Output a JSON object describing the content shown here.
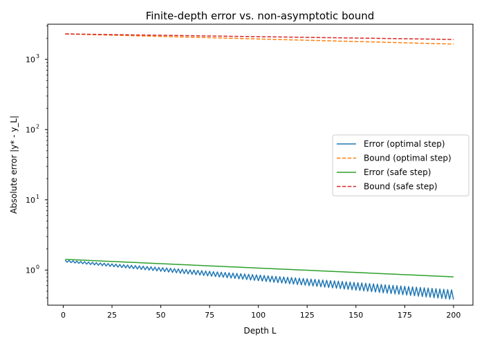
{
  "chart_data": {
    "type": "line",
    "title": "Finite-depth error vs. non-asymptotic bound",
    "xlabel": "Depth L",
    "ylabel": "Absolute error |y* - y_L|",
    "xlim": [
      -7.95,
      209.95
    ],
    "ylim_log10": [
      -0.5,
      3.5
    ],
    "yscale": "log",
    "x_ticks": [
      0,
      25,
      50,
      75,
      100,
      125,
      150,
      175,
      200
    ],
    "x_tick_labels": [
      "0",
      "25",
      "50",
      "75",
      "100",
      "125",
      "150",
      "175",
      "200"
    ],
    "y_ticks": [
      1,
      10,
      100,
      1000
    ],
    "y_tick_labels": [
      "10",
      "10",
      "10",
      "10"
    ],
    "y_tick_exponents": [
      "0",
      "1",
      "2",
      "3"
    ],
    "grid": false,
    "legend_position": "center-right",
    "series": [
      {
        "name": "Error (optimal step)",
        "color": "#1f77b4",
        "style": "solid",
        "x_range": [
          1,
          200
        ],
        "y_upper_start": 1.38,
        "y_upper_end": 0.52,
        "y_lower_start": 1.3,
        "y_lower_end": 0.38,
        "note_alternates": "oscillates between upper and lower envelope every depth step"
      },
      {
        "name": "Bound (optimal step)",
        "color": "#ff7f0e",
        "style": "dashed",
        "x": [
          1,
          200
        ],
        "y": [
          2300,
          1650
        ]
      },
      {
        "name": "Error (safe step)",
        "color": "#2ca02c",
        "style": "solid",
        "x": [
          1,
          200
        ],
        "y": [
          1.42,
          0.8
        ]
      },
      {
        "name": "Bound (safe step)",
        "color": "#d62728",
        "style": "dashed",
        "x": [
          1,
          200
        ],
        "y": [
          2300,
          1920
        ]
      }
    ]
  }
}
